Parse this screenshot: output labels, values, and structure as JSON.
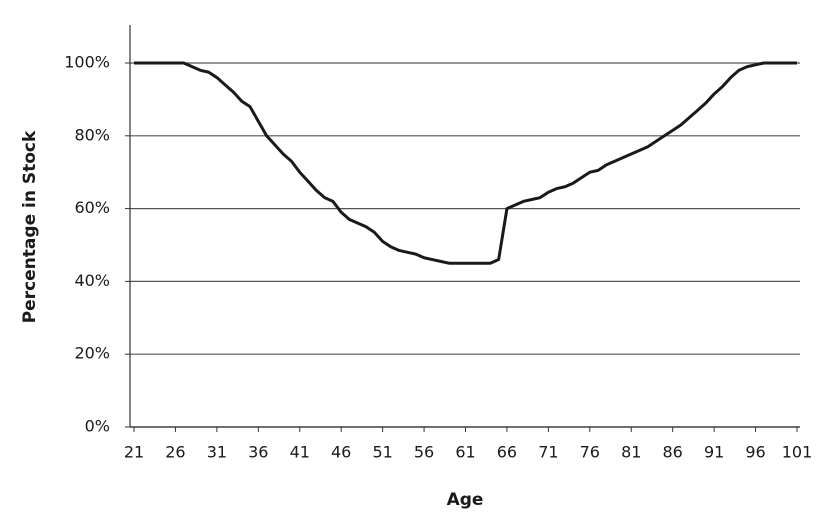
{
  "chart_data": {
    "type": "line",
    "x_label": "Age",
    "y_label": "Percentage in Stock",
    "x": [
      21,
      22,
      23,
      24,
      25,
      26,
      27,
      28,
      29,
      30,
      31,
      32,
      33,
      34,
      35,
      36,
      37,
      38,
      39,
      40,
      41,
      42,
      43,
      44,
      45,
      46,
      47,
      48,
      49,
      50,
      51,
      52,
      53,
      54,
      55,
      56,
      57,
      58,
      59,
      60,
      61,
      62,
      63,
      64,
      65,
      66,
      67,
      68,
      69,
      70,
      71,
      72,
      73,
      74,
      75,
      76,
      77,
      78,
      79,
      80,
      81,
      82,
      83,
      84,
      85,
      86,
      87,
      88,
      89,
      90,
      91,
      92,
      93,
      94,
      95,
      96,
      97,
      98,
      99,
      100,
      101
    ],
    "series": [
      {
        "name": "Percentage in Stock",
        "color": "#1a1a1a",
        "values": [
          100,
          100,
          100,
          100,
          100,
          100,
          100,
          99,
          98,
          97.5,
          96,
          94,
          92,
          89.5,
          88,
          84,
          80,
          77.5,
          75,
          73,
          70,
          67.5,
          65,
          63,
          62,
          59,
          57,
          56,
          55,
          53.5,
          51,
          49.5,
          48.5,
          48,
          47.5,
          46.5,
          46,
          45.5,
          45,
          45,
          45,
          45,
          45,
          45,
          46,
          60,
          61,
          62,
          62.5,
          63,
          64.5,
          65.5,
          66,
          67,
          68.5,
          70,
          70.5,
          72,
          73,
          74,
          75,
          76,
          77,
          78.5,
          80,
          81.5,
          83,
          85,
          87,
          89,
          91.5,
          93.5,
          96,
          98,
          99,
          99.5,
          100,
          100,
          100,
          100,
          100
        ]
      }
    ],
    "xlim": [
      21,
      101
    ],
    "xticks": [
      21,
      26,
      31,
      36,
      41,
      46,
      51,
      56,
      61,
      66,
      71,
      76,
      81,
      86,
      91,
      96,
      101
    ],
    "ylim": [
      0,
      110
    ],
    "yticks": [
      {
        "value": 0,
        "label": "0%"
      },
      {
        "value": 20,
        "label": "20%"
      },
      {
        "value": 40,
        "label": "40%"
      },
      {
        "value": 60,
        "label": "60%"
      },
      {
        "value": 80,
        "label": "80%"
      },
      {
        "value": 100,
        "label": "100%"
      }
    ],
    "grid": true
  }
}
